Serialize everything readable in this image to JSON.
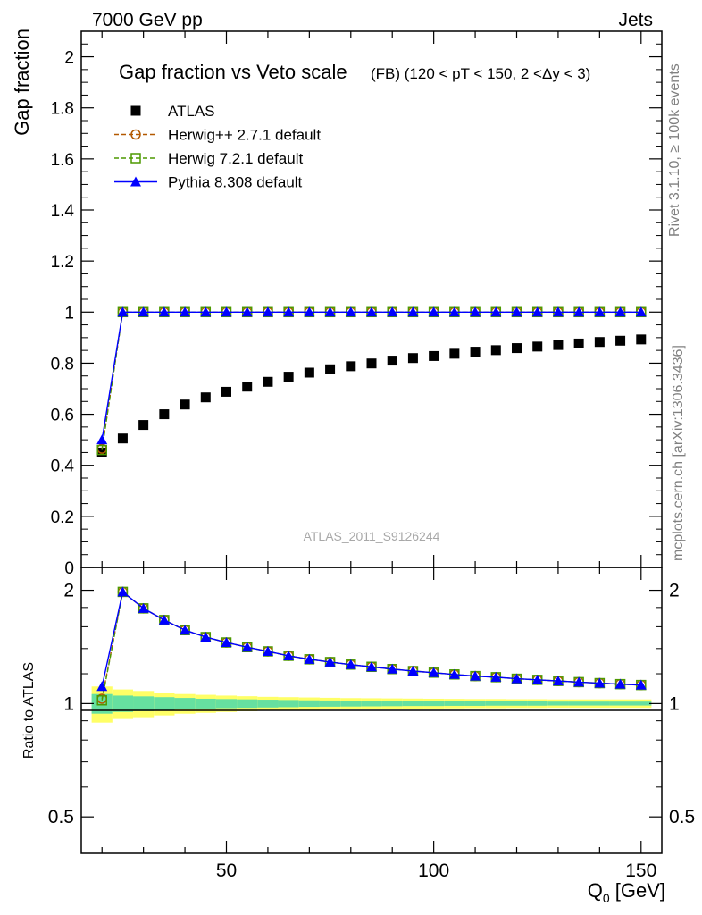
{
  "header": {
    "left": "7000 GeV pp",
    "right": "Jets"
  },
  "side_labels": {
    "rivet": "Rivet 3.1.10, ≥ 100k events",
    "mcplots": "mcplots.cern.ch [arXiv:1306.3436]"
  },
  "colors": {
    "atlas": "#000000",
    "herwigpp": "#b35900",
    "herwig7": "#4d9900",
    "pythia": "#0000ff",
    "band_inner": "#66e0a0",
    "band_outer": "#ffff66"
  },
  "chart_data": [
    {
      "type": "scatter",
      "title": "Gap fraction vs Veto scale",
      "subtitle": "(FB) (120 < pT < 150, 2 <Δy < 3)",
      "ylabel": "Gap fraction",
      "xlim": [
        15,
        155
      ],
      "ylim": [
        0,
        2.1
      ],
      "yticks": [
        "0",
        "0.2",
        "0.4",
        "0.6",
        "0.8",
        "1",
        "1.2",
        "1.4",
        "1.6",
        "1.8",
        "2"
      ],
      "grid": false,
      "legend_position": "top-left",
      "watermark": "ATLAS_2011_S9126244",
      "x": [
        20,
        25,
        30,
        35,
        40,
        45,
        50,
        55,
        60,
        65,
        70,
        75,
        80,
        85,
        90,
        95,
        100,
        105,
        110,
        115,
        120,
        125,
        130,
        135,
        140,
        145,
        150
      ],
      "series": [
        {
          "name": "ATLAS",
          "marker": "filled-square",
          "values": [
            0.45,
            0.505,
            0.558,
            0.6,
            0.638,
            0.666,
            0.688,
            0.708,
            0.727,
            0.747,
            0.763,
            0.776,
            0.788,
            0.799,
            0.81,
            0.82,
            0.828,
            0.837,
            0.845,
            0.851,
            0.859,
            0.865,
            0.871,
            0.877,
            0.883,
            0.888,
            0.893
          ]
        },
        {
          "name": "Herwig++ 2.7.1 default",
          "marker": "open-circle",
          "values": [
            0.465,
            1,
            1,
            1,
            1,
            1,
            1,
            1,
            1,
            1,
            1,
            1,
            1,
            1,
            1,
            1,
            1,
            1,
            1,
            1,
            1,
            1,
            1,
            1,
            1,
            1,
            1
          ]
        },
        {
          "name": "Herwig 7.2.1 default",
          "marker": "open-square",
          "values": [
            0.46,
            1,
            1,
            1,
            1,
            1,
            1,
            1,
            1,
            1,
            1,
            1,
            1,
            1,
            1,
            1,
            1,
            1,
            1,
            1,
            1,
            1,
            1,
            1,
            1,
            1,
            1
          ]
        },
        {
          "name": "Pythia 8.308 default",
          "marker": "filled-triangle",
          "values": [
            0.5,
            1,
            1,
            1,
            1,
            1,
            1,
            1,
            1,
            1,
            1,
            1,
            1,
            1,
            1,
            1,
            1,
            1,
            1,
            1,
            1,
            1,
            1,
            1,
            1,
            1,
            1
          ]
        }
      ]
    },
    {
      "type": "scatter",
      "ylabel": "Ratio to ATLAS",
      "xlabel": "Q0 [GeV]",
      "xlim": [
        15,
        155
      ],
      "ylim": [
        0.4,
        2.3
      ],
      "yscale": "log",
      "yticks": [
        "0.5",
        "1",
        "2"
      ],
      "xticks": [
        "50",
        "100",
        "150"
      ],
      "grid": false,
      "x": [
        20,
        25,
        30,
        35,
        40,
        45,
        50,
        55,
        60,
        65,
        70,
        75,
        80,
        85,
        90,
        95,
        100,
        105,
        110,
        115,
        120,
        125,
        130,
        135,
        140,
        145,
        150
      ],
      "band_inner_halfwidth": [
        0.06,
        0.05,
        0.045,
        0.04,
        0.035,
        0.03,
        0.028,
        0.026,
        0.024,
        0.022,
        0.02,
        0.019,
        0.018,
        0.017,
        0.016,
        0.015,
        0.015,
        0.014,
        0.014,
        0.013,
        0.013,
        0.013,
        0.012,
        0.012,
        0.012,
        0.012,
        0.012
      ],
      "band_outer_halfwidth": [
        0.11,
        0.09,
        0.08,
        0.07,
        0.06,
        0.055,
        0.05,
        0.046,
        0.042,
        0.04,
        0.038,
        0.036,
        0.034,
        0.033,
        0.032,
        0.031,
        0.03,
        0.029,
        0.028,
        0.028,
        0.027,
        0.027,
        0.026,
        0.026,
        0.026,
        0.026,
        0.026
      ],
      "series": [
        {
          "name": "Herwig++ 2.7.1 default",
          "marker": "open-circle",
          "values": [
            1.03,
            1.98,
            1.79,
            1.667,
            1.567,
            1.502,
            1.453,
            1.412,
            1.376,
            1.339,
            1.311,
            1.289,
            1.269,
            1.252,
            1.235,
            1.22,
            1.208,
            1.195,
            1.183,
            1.175,
            1.164,
            1.156,
            1.148,
            1.14,
            1.133,
            1.126,
            1.12
          ]
        },
        {
          "name": "Herwig 7.2.1 default",
          "marker": "open-square",
          "values": [
            1.02,
            1.98,
            1.79,
            1.667,
            1.567,
            1.502,
            1.453,
            1.412,
            1.376,
            1.339,
            1.311,
            1.289,
            1.269,
            1.252,
            1.235,
            1.22,
            1.208,
            1.195,
            1.183,
            1.175,
            1.164,
            1.156,
            1.148,
            1.14,
            1.133,
            1.126,
            1.12
          ]
        },
        {
          "name": "Pythia 8.308 default",
          "marker": "filled-triangle",
          "values": [
            1.11,
            1.98,
            1.79,
            1.667,
            1.567,
            1.502,
            1.453,
            1.412,
            1.376,
            1.339,
            1.311,
            1.289,
            1.269,
            1.252,
            1.235,
            1.22,
            1.208,
            1.195,
            1.183,
            1.175,
            1.164,
            1.156,
            1.148,
            1.14,
            1.133,
            1.126,
            1.12
          ]
        }
      ]
    }
  ]
}
